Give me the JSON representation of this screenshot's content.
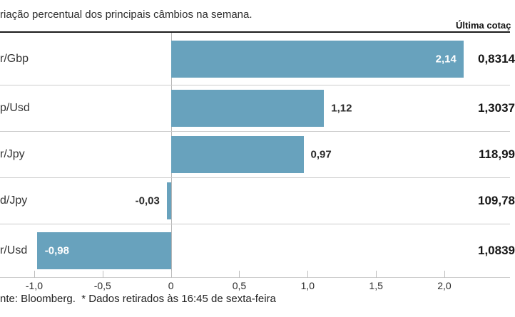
{
  "title": "riação percentual dos principais câmbios na semana.",
  "last_quote_header": "Última cotaç",
  "footer": "nte: Bloomberg.  * Dados retirados às 16:45 de sexta-feira",
  "colors": {
    "bar": "#68a2bd",
    "header_rule": "#1c1c1c",
    "row_rule": "#cccccc",
    "zero_line": "#b5b5b5",
    "axis_line": "#c4c4c4",
    "text_dark": "#2b2b2b",
    "value_inside_bar": "#ffffff"
  },
  "chart_data": {
    "type": "bar",
    "orientation": "horizontal",
    "title": "riação percentual dos principais câmbios na semana.",
    "categories": [
      "r/Gbp",
      "p/Usd",
      "r/Jpy",
      "d/Jpy",
      "r/Usd"
    ],
    "values": [
      2.14,
      1.12,
      0.97,
      -0.03,
      -0.98
    ],
    "value_labels": [
      "2,14",
      "1,12",
      "0,97",
      "-0,03",
      "-0,98"
    ],
    "label_inside": [
      true,
      false,
      false,
      false,
      true
    ],
    "last_quote_column": {
      "header": "Última cotaç",
      "values": [
        "0,8314",
        "1,3037",
        "118,99",
        "109,78",
        "1,0839"
      ]
    },
    "x_ticks": [
      -1.0,
      -0.5,
      0,
      0.5,
      1.0,
      1.5,
      2.0
    ],
    "x_tick_labels": [
      "-1,0",
      "-0,5",
      "0",
      "0,5",
      "1,0",
      "1,5",
      "2,0"
    ],
    "xlim": [
      -1.25,
      2.48
    ],
    "xlabel": "",
    "ylabel": "",
    "grid": "zero-line-only",
    "legend": "none",
    "source_note": "nte: Bloomberg.  * Dados retirados às 16:45 de sexta-feira"
  }
}
